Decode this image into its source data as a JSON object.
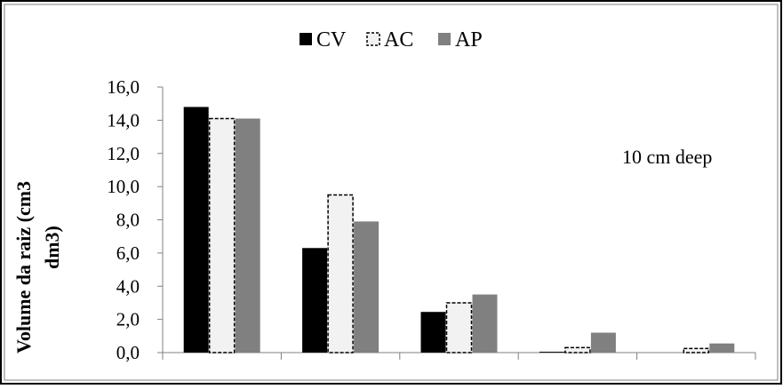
{
  "chart_data": {
    "type": "bar",
    "title": "",
    "annotation": "10 cm deep",
    "ylabel_line1": "Volume da raiz (cm3",
    "ylabel_line2": "dm3)",
    "xlabel": "",
    "ylim": [
      0,
      16
    ],
    "yticks": [
      "0,0",
      "2,0",
      "4,0",
      "6,0",
      "8,0",
      "10,0",
      "12,0",
      "14,0",
      "16,0"
    ],
    "ytick_values": [
      0,
      2,
      4,
      6,
      8,
      10,
      12,
      14,
      16
    ],
    "categories": [
      "",
      "",
      "",
      "",
      ""
    ],
    "legend_position": "top-center",
    "series": [
      {
        "name": "CV",
        "values": [
          14.8,
          6.3,
          2.45,
          0.05,
          0.0
        ],
        "style": "solid",
        "fill": "#000000",
        "stroke": "#000000"
      },
      {
        "name": "AC",
        "values": [
          14.1,
          9.5,
          3.0,
          0.3,
          0.25
        ],
        "style": "dashed",
        "fill": "#f2f2f2",
        "stroke": "#000000"
      },
      {
        "name": "AP",
        "values": [
          14.1,
          7.9,
          3.5,
          1.2,
          0.55
        ],
        "style": "solid",
        "fill": "#808080",
        "stroke": "#808080"
      }
    ]
  }
}
